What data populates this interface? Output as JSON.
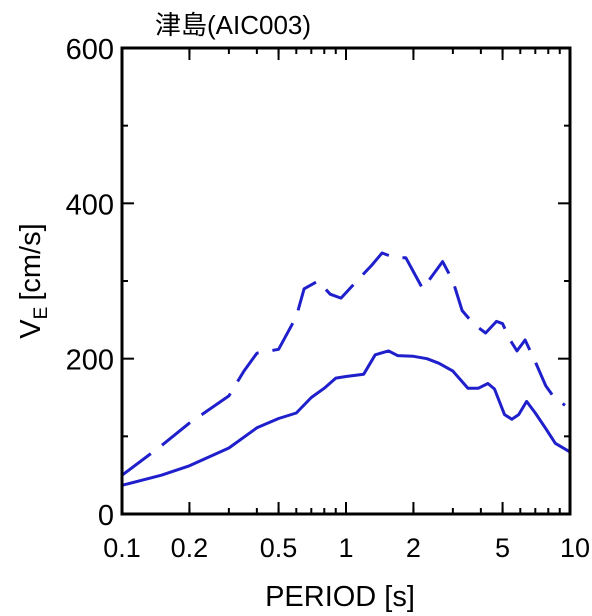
{
  "chart_data": {
    "type": "line",
    "title": "津島(AIC003)",
    "xlabel": "PERIOD [s]",
    "ylabel_main": "V",
    "ylabel_sub": "E",
    "ylabel_unit": "[cm/s]",
    "xscale": "log",
    "xlim": [
      0.1,
      10
    ],
    "ylim": [
      0,
      600
    ],
    "grid": false,
    "x_ticks": [
      {
        "value": 0.1,
        "label": "0.1"
      },
      {
        "value": 0.2,
        "label": "0.2"
      },
      {
        "value": 0.5,
        "label": "0.5"
      },
      {
        "value": 1,
        "label": "1"
      },
      {
        "value": 2,
        "label": "2"
      },
      {
        "value": 5,
        "label": "5"
      },
      {
        "value": 10,
        "label": "10"
      }
    ],
    "y_ticks": [
      {
        "value": 0,
        "label": "0"
      },
      {
        "value": 200,
        "label": "200"
      },
      {
        "value": 400,
        "label": "400"
      },
      {
        "value": 600,
        "label": "600"
      }
    ],
    "series": [
      {
        "style": "dashed",
        "color": "#1f1fcc",
        "points": [
          [
            0.1,
            50
          ],
          [
            0.15,
            88
          ],
          [
            0.2,
            117
          ],
          [
            0.3,
            152
          ],
          [
            0.35,
            184
          ],
          [
            0.4,
            207
          ],
          [
            0.5,
            212
          ],
          [
            0.6,
            254
          ],
          [
            0.65,
            290
          ],
          [
            0.75,
            300
          ],
          [
            0.85,
            283
          ],
          [
            0.95,
            278
          ],
          [
            1.1,
            298
          ],
          [
            1.3,
            320
          ],
          [
            1.45,
            336
          ],
          [
            1.65,
            330
          ],
          [
            1.85,
            330
          ],
          [
            2.2,
            290
          ],
          [
            2.7,
            325
          ],
          [
            3.0,
            300
          ],
          [
            3.3,
            262
          ],
          [
            3.7,
            245
          ],
          [
            4.2,
            233
          ],
          [
            4.7,
            248
          ],
          [
            5.0,
            245
          ],
          [
            5.4,
            224
          ],
          [
            5.8,
            210
          ],
          [
            6.3,
            224
          ],
          [
            7.0,
            196
          ],
          [
            7.8,
            165
          ],
          [
            8.5,
            150
          ],
          [
            9.5,
            140
          ]
        ]
      },
      {
        "style": "solid",
        "color": "#1f1fcc",
        "points": [
          [
            0.1,
            37
          ],
          [
            0.15,
            50
          ],
          [
            0.2,
            62
          ],
          [
            0.3,
            85
          ],
          [
            0.4,
            111
          ],
          [
            0.5,
            123
          ],
          [
            0.6,
            130
          ],
          [
            0.7,
            150
          ],
          [
            0.8,
            162
          ],
          [
            0.9,
            175
          ],
          [
            1.0,
            177
          ],
          [
            1.2,
            180
          ],
          [
            1.35,
            205
          ],
          [
            1.55,
            210
          ],
          [
            1.7,
            204
          ],
          [
            2.0,
            203
          ],
          [
            2.3,
            200
          ],
          [
            2.6,
            194
          ],
          [
            3.0,
            184
          ],
          [
            3.5,
            162
          ],
          [
            3.9,
            162
          ],
          [
            4.3,
            168
          ],
          [
            4.6,
            161
          ],
          [
            5.1,
            128
          ],
          [
            5.5,
            122
          ],
          [
            5.9,
            128
          ],
          [
            6.4,
            145
          ],
          [
            7.0,
            130
          ],
          [
            7.8,
            110
          ],
          [
            8.6,
            91
          ],
          [
            10.0,
            80
          ]
        ]
      }
    ]
  }
}
